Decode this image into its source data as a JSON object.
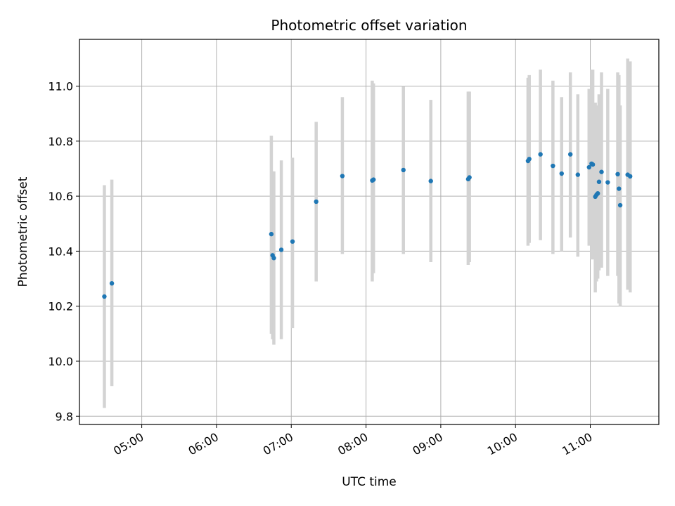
{
  "chart_data": {
    "type": "scatter",
    "title": "Photometric offset variation",
    "xlabel": "UTC time",
    "ylabel": "Photometric offset",
    "x_unit": "UTC time of day",
    "xlim": [
      "04:10",
      "11:55"
    ],
    "ylim": [
      9.77,
      11.17
    ],
    "xticks": [
      "05:00",
      "06:00",
      "07:00",
      "08:00",
      "09:00",
      "10:00",
      "11:00"
    ],
    "yticks": [
      "9.8",
      "10.0",
      "10.2",
      "10.4",
      "10.6",
      "10.8",
      "11.0"
    ],
    "grid": true,
    "legend": "none",
    "colors": {
      "point": "#1f77b4",
      "errorbar": "#d3d3d3",
      "grid": "#b0b0b0"
    },
    "points": [
      {
        "x": "04:30",
        "y": 10.235,
        "lo": 9.83,
        "hi": 10.64
      },
      {
        "x": "04:36",
        "y": 10.283,
        "lo": 9.91,
        "hi": 10.66
      },
      {
        "x": "06:44",
        "y": 10.462,
        "lo": 10.1,
        "hi": 10.82
      },
      {
        "x": "06:45",
        "y": 10.385,
        "lo": 10.08,
        "hi": 10.69
      },
      {
        "x": "06:46",
        "y": 10.375,
        "lo": 10.06,
        "hi": 10.69
      },
      {
        "x": "06:52",
        "y": 10.405,
        "lo": 10.08,
        "hi": 10.73
      },
      {
        "x": "07:01",
        "y": 10.435,
        "lo": 10.12,
        "hi": 10.74
      },
      {
        "x": "07:20",
        "y": 10.58,
        "lo": 10.29,
        "hi": 10.87
      },
      {
        "x": "07:41",
        "y": 10.673,
        "lo": 10.39,
        "hi": 10.96
      },
      {
        "x": "08:05",
        "y": 10.657,
        "lo": 10.29,
        "hi": 11.02
      },
      {
        "x": "08:06",
        "y": 10.66,
        "lo": 10.32,
        "hi": 11.01
      },
      {
        "x": "08:30",
        "y": 10.695,
        "lo": 10.39,
        "hi": 11.0
      },
      {
        "x": "08:52",
        "y": 10.655,
        "lo": 10.36,
        "hi": 10.95
      },
      {
        "x": "09:22",
        "y": 10.662,
        "lo": 10.35,
        "hi": 10.98
      },
      {
        "x": "09:23",
        "y": 10.668,
        "lo": 10.36,
        "hi": 10.98
      },
      {
        "x": "10:10",
        "y": 10.728,
        "lo": 10.42,
        "hi": 11.03
      },
      {
        "x": "10:11",
        "y": 10.735,
        "lo": 10.43,
        "hi": 11.04
      },
      {
        "x": "10:20",
        "y": 10.752,
        "lo": 10.44,
        "hi": 11.06
      },
      {
        "x": "10:30",
        "y": 10.71,
        "lo": 10.39,
        "hi": 11.02
      },
      {
        "x": "10:37",
        "y": 10.682,
        "lo": 10.4,
        "hi": 10.96
      },
      {
        "x": "10:44",
        "y": 10.752,
        "lo": 10.45,
        "hi": 11.05
      },
      {
        "x": "10:50",
        "y": 10.678,
        "lo": 10.38,
        "hi": 10.97
      },
      {
        "x": "10:59",
        "y": 10.705,
        "lo": 10.42,
        "hi": 10.99
      },
      {
        "x": "11:01",
        "y": 10.718,
        "lo": 10.37,
        "hi": 11.06
      },
      {
        "x": "11:02",
        "y": 10.715,
        "lo": 10.37,
        "hi": 11.06
      },
      {
        "x": "11:04",
        "y": 10.598,
        "lo": 10.25,
        "hi": 10.94
      },
      {
        "x": "11:05",
        "y": 10.605,
        "lo": 10.29,
        "hi": 10.92
      },
      {
        "x": "11:06",
        "y": 10.61,
        "lo": 10.3,
        "hi": 10.93
      },
      {
        "x": "11:07",
        "y": 10.652,
        "lo": 10.33,
        "hi": 10.97
      },
      {
        "x": "11:09",
        "y": 10.688,
        "lo": 10.34,
        "hi": 11.05
      },
      {
        "x": "11:14",
        "y": 10.65,
        "lo": 10.31,
        "hi": 10.99
      },
      {
        "x": "11:22",
        "y": 10.68,
        "lo": 10.31,
        "hi": 11.05
      },
      {
        "x": "11:23",
        "y": 10.627,
        "lo": 10.21,
        "hi": 11.04
      },
      {
        "x": "11:24",
        "y": 10.567,
        "lo": 10.2,
        "hi": 10.93
      },
      {
        "x": "11:30",
        "y": 10.678,
        "lo": 10.26,
        "hi": 11.1
      },
      {
        "x": "11:32",
        "y": 10.672,
        "lo": 10.25,
        "hi": 11.09
      }
    ]
  }
}
